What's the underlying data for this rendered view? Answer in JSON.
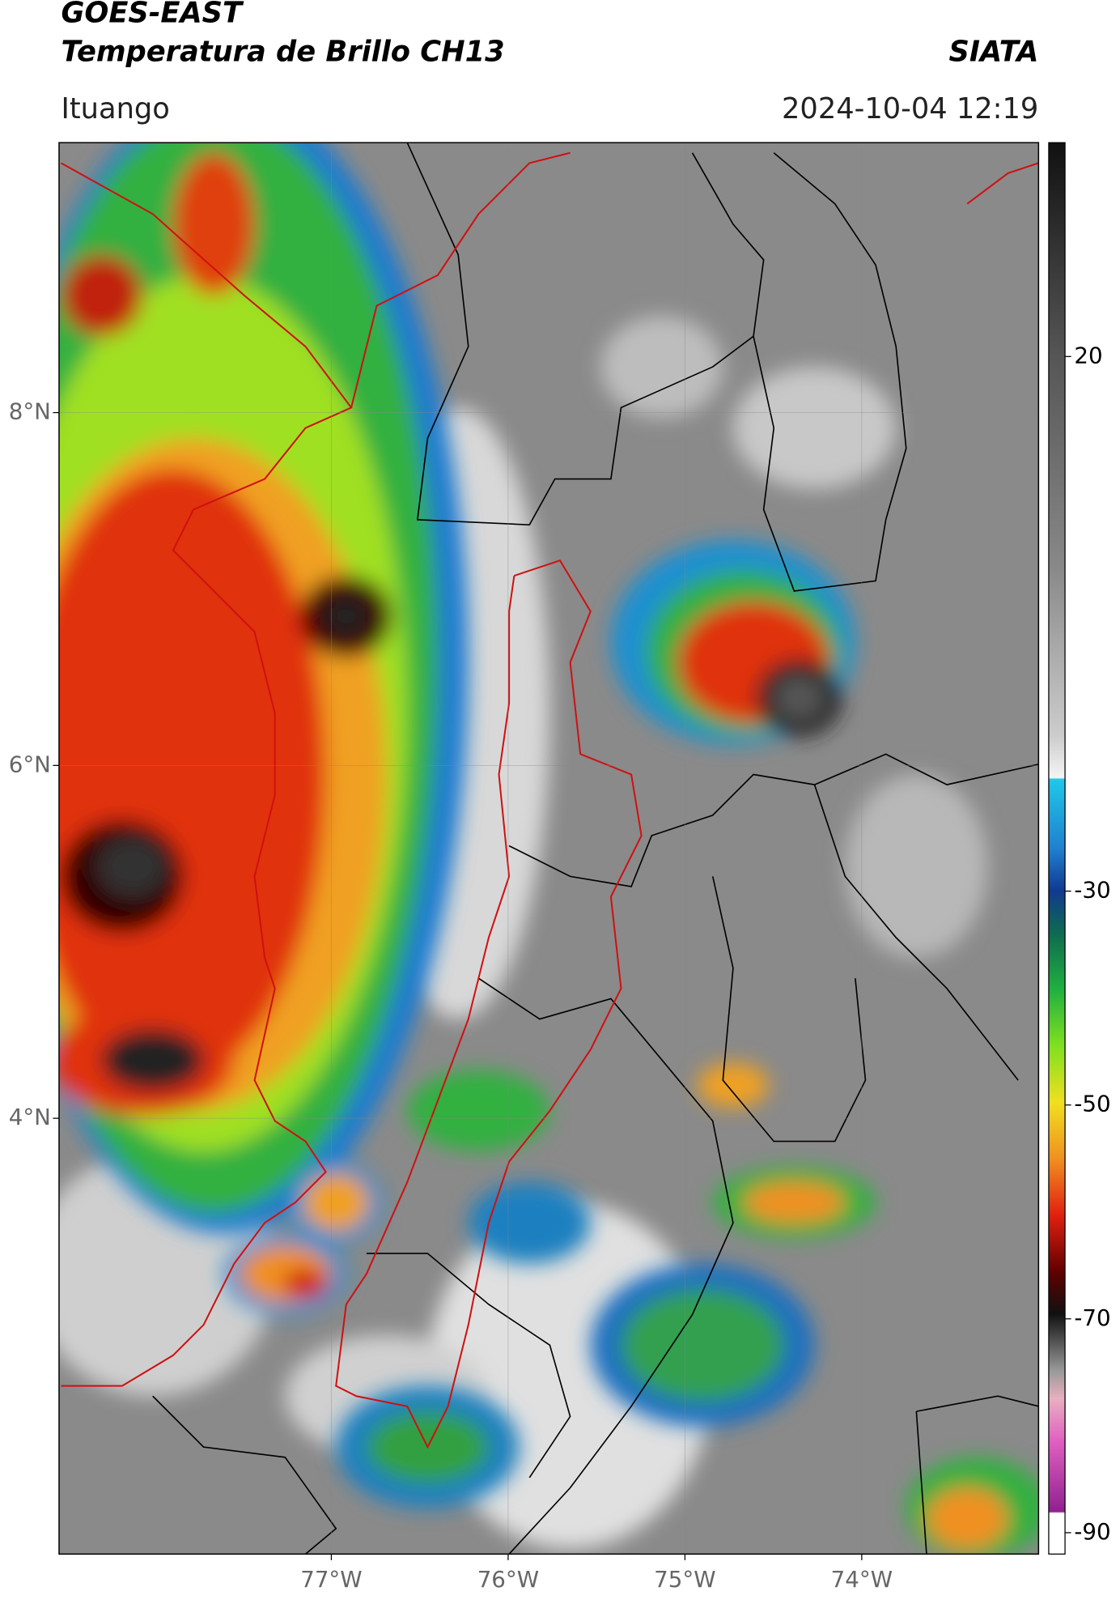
{
  "header": {
    "title": "GOES-EAST",
    "subtitle": "Temperatura de Brillo CH13",
    "source": "SIATA",
    "location": "Ituango",
    "datetime": "2024-10-04 12:19"
  },
  "map": {
    "xlim": [
      -78.54,
      -73.0
    ],
    "ylim": [
      1.53,
      9.53
    ],
    "xticks": [
      {
        "value": -77,
        "label": "77°W"
      },
      {
        "value": -76,
        "label": "76°W"
      },
      {
        "value": -75,
        "label": "75°W"
      },
      {
        "value": -74,
        "label": "74°W"
      }
    ],
    "yticks": [
      {
        "value": 8,
        "label": "8°N"
      },
      {
        "value": 6,
        "label": "6°N"
      },
      {
        "value": 4,
        "label": "4°N"
      }
    ]
  },
  "colorbar": {
    "lim": [
      -92,
      40
    ],
    "ticks": [
      20,
      -30,
      -50,
      -70,
      -90
    ]
  }
}
